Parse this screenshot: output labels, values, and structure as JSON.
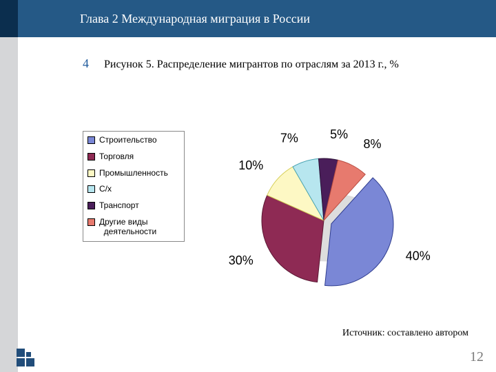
{
  "theme": {
    "header_bg": "#255986",
    "header_text_color": "#ffffff",
    "left_strip_dark": "#0b2e4e",
    "left_strip_grey": "#d5d6d8",
    "corner_square_color": "#214d7a",
    "accent_number_color": "#1e5a9c",
    "page_number_color": "#7a7a7a",
    "font_body": "Times New Roman",
    "font_chart": "Arial"
  },
  "header": {
    "title": "Глава 2 Международная миграция в России"
  },
  "subtitle": {
    "number": "4",
    "text": "Рисунок  5. Распределение мигрантов по отраслям за 2013 г., %"
  },
  "chart": {
    "type": "pie",
    "explode_first": true,
    "has_3d_shadow": true,
    "start_angle_deg": 48,
    "slice_label_fontsize": 18,
    "legend_fontsize": 12,
    "legend_border_color": "#888888",
    "slices": [
      {
        "name": "Строительство",
        "value": 40,
        "label": "40%",
        "color": "#7a87d6",
        "border": "#2f3d8f"
      },
      {
        "name": "Торговля",
        "value": 30,
        "label": "30%",
        "color": "#8e2a54",
        "border": "#5a1833"
      },
      {
        "name": "Промышленность",
        "value": 10,
        "label": "10%",
        "color": "#fdf8c4",
        "border": "#d6cf5a"
      },
      {
        "name": "С/х",
        "value": 7,
        "label": "7%",
        "color": "#b7e6ef",
        "border": "#4aa3b3"
      },
      {
        "name": "Транспорт",
        "value": 5,
        "label": "5%",
        "color": "#4a1e5a",
        "border": "#2d1236"
      },
      {
        "name": "Другие виды\nдеятельности",
        "value": 8,
        "label": "8%",
        "color": "#e77a6e",
        "border": "#b84d42"
      }
    ]
  },
  "source": "Источник: составлено автором",
  "page_number": "12"
}
